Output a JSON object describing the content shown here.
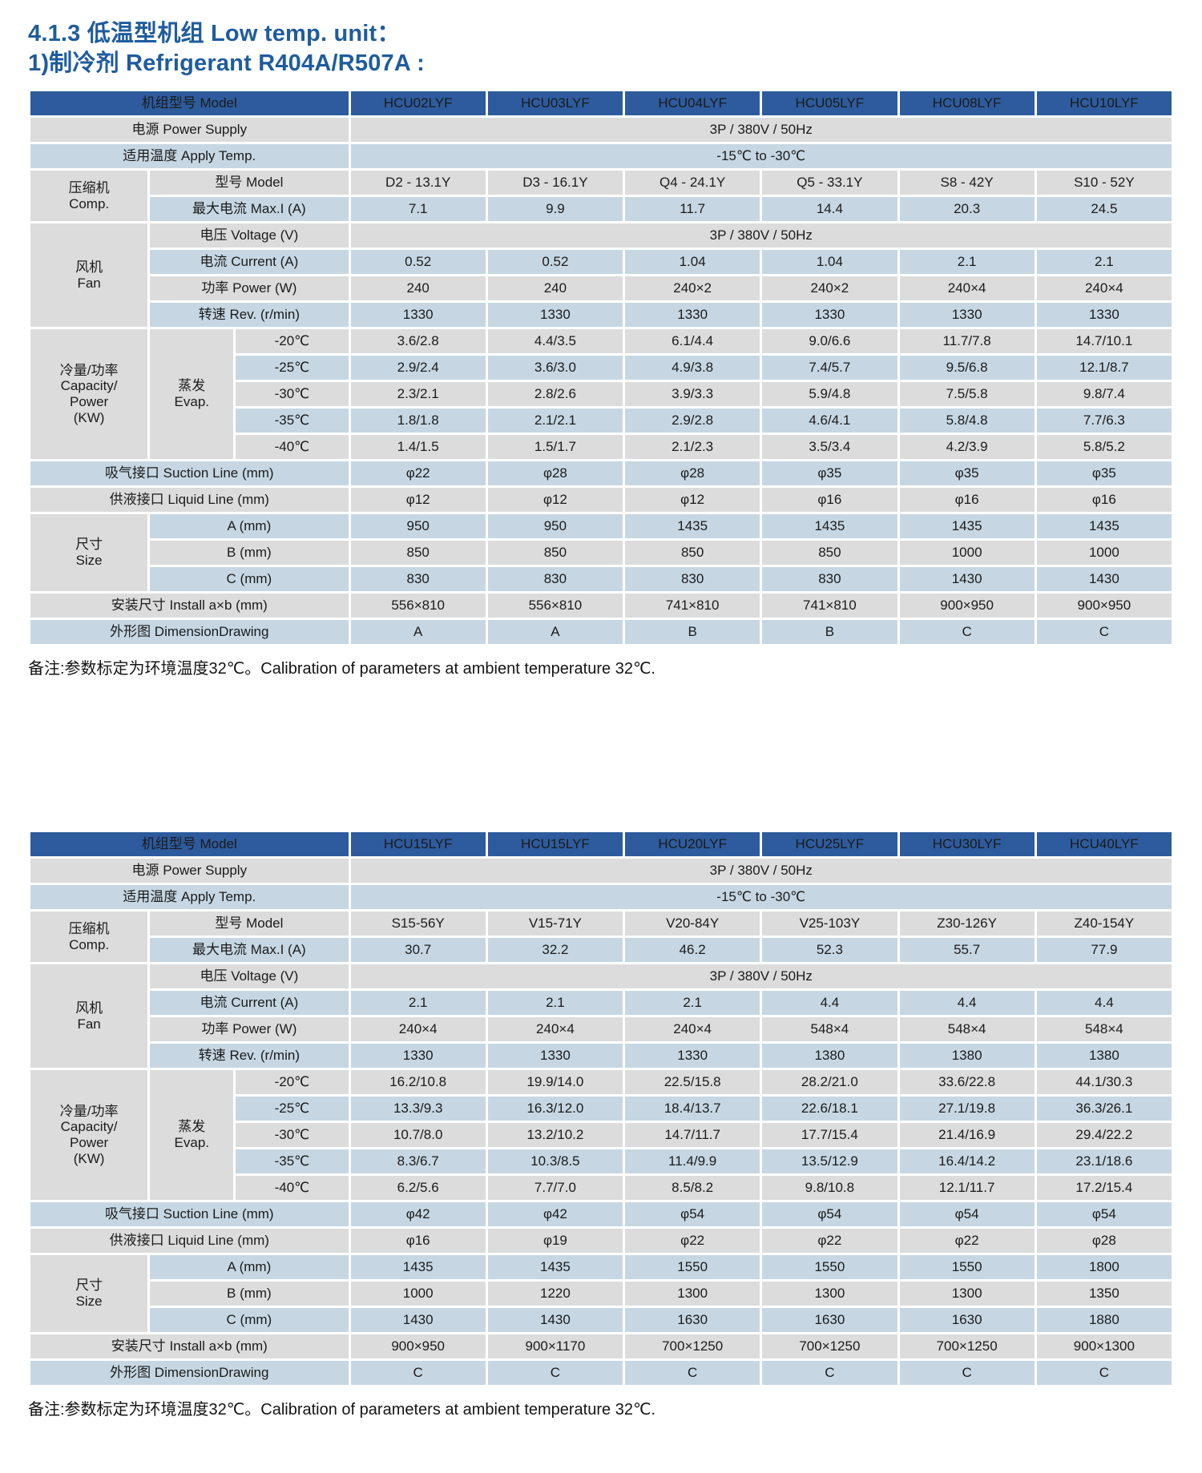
{
  "page": {
    "title_line1": "4.1.3 低温型机组 Low temp. unit：",
    "title_line2": "1)制冷剂 Refrigerant  R404A/R507A :",
    "footnote": "备注:参数标定为环境温度32℃。Calibration of parameters at ambient temperature 32℃."
  },
  "colors": {
    "header_bg": "#2d5b9d",
    "header_text": "#ffffff",
    "row_gray": "#dcdcdc",
    "row_blue": "#c6d7e3",
    "title_blue": "#1e5c9e"
  },
  "labels": {
    "model_header": "机组型号 Model",
    "power_supply": "电源 Power Supply",
    "apply_temp": "适用温度 Apply Temp.",
    "comp_group": [
      "压缩机",
      "Comp."
    ],
    "comp_model": "型号 Model",
    "comp_maxi": "最大电流 Max.I (A)",
    "fan_group": [
      "风机",
      "Fan"
    ],
    "fan_voltage": "电压 Voltage (V)",
    "fan_current": "电流 Current (A)",
    "fan_power": "功率 Power (W)",
    "fan_rev": "转速 Rev. (r/min)",
    "capacity_group": [
      "冷量/功率",
      "Capacity/",
      "Power",
      "(KW)"
    ],
    "evap": [
      "蒸发",
      "Evap."
    ],
    "temp_rows": [
      "-20℃",
      "-25℃",
      "-30℃",
      "-35℃",
      "-40℃"
    ],
    "suction": "吸气接口 Suction Line (mm)",
    "liquid": "供液接口 Liquid Line (mm)",
    "size_group": [
      "尺寸",
      "Size"
    ],
    "size_a": "A (mm)",
    "size_b": "B (mm)",
    "size_c": "C (mm)",
    "install": "安装尺寸 Install a×b (mm)",
    "drawing": "外形图 DimensionDrawing"
  },
  "tables": [
    {
      "models": [
        "HCU02LYF",
        "HCU03LYF",
        "HCU04LYF",
        "HCU05LYF",
        "HCU08LYF",
        "HCU10LYF"
      ],
      "power_supply": "3P / 380V / 50Hz",
      "apply_temp": "-15℃ to -30℃",
      "comp_model": [
        "D2 - 13.1Y",
        "D3 - 16.1Y",
        "Q4 - 24.1Y",
        "Q5 - 33.1Y",
        "S8 - 42Y",
        "S10 - 52Y"
      ],
      "comp_maxi": [
        "7.1",
        "9.9",
        "11.7",
        "14.4",
        "20.3",
        "24.5"
      ],
      "fan_voltage": "3P / 380V / 50Hz",
      "fan_current": [
        "0.52",
        "0.52",
        "1.04",
        "1.04",
        "2.1",
        "2.1"
      ],
      "fan_power": [
        "240",
        "240",
        "240×2",
        "240×2",
        "240×4",
        "240×4"
      ],
      "fan_rev": [
        "1330",
        "1330",
        "1330",
        "1330",
        "1330",
        "1330"
      ],
      "capacity": [
        [
          "3.6/2.8",
          "4.4/3.5",
          "6.1/4.4",
          "9.0/6.6",
          "11.7/7.8",
          "14.7/10.1"
        ],
        [
          "2.9/2.4",
          "3.6/3.0",
          "4.9/3.8",
          "7.4/5.7",
          "9.5/6.8",
          "12.1/8.7"
        ],
        [
          "2.3/2.1",
          "2.8/2.6",
          "3.9/3.3",
          "5.9/4.8",
          "7.5/5.8",
          "9.8/7.4"
        ],
        [
          "1.8/1.8",
          "2.1/2.1",
          "2.9/2.8",
          "4.6/4.1",
          "5.8/4.8",
          "7.7/6.3"
        ],
        [
          "1.4/1.5",
          "1.5/1.7",
          "2.1/2.3",
          "3.5/3.4",
          "4.2/3.9",
          "5.8/5.2"
        ]
      ],
      "suction": [
        "φ22",
        "φ28",
        "φ28",
        "φ35",
        "φ35",
        "φ35"
      ],
      "liquid": [
        "φ12",
        "φ12",
        "φ12",
        "φ16",
        "φ16",
        "φ16"
      ],
      "size_a": [
        "950",
        "950",
        "1435",
        "1435",
        "1435",
        "1435"
      ],
      "size_b": [
        "850",
        "850",
        "850",
        "850",
        "1000",
        "1000"
      ],
      "size_c": [
        "830",
        "830",
        "830",
        "830",
        "1430",
        "1430"
      ],
      "install": [
        "556×810",
        "556×810",
        "741×810",
        "741×810",
        "900×950",
        "900×950"
      ],
      "drawing": [
        "A",
        "A",
        "B",
        "B",
        "C",
        "C"
      ]
    },
    {
      "models": [
        "HCU15LYF",
        "HCU15LYF",
        "HCU20LYF",
        "HCU25LYF",
        "HCU30LYF",
        "HCU40LYF"
      ],
      "power_supply": "3P / 380V / 50Hz",
      "apply_temp": "-15℃ to -30℃",
      "comp_model": [
        "S15-56Y",
        "V15-71Y",
        "V20-84Y",
        "V25-103Y",
        "Z30-126Y",
        "Z40-154Y"
      ],
      "comp_maxi": [
        "30.7",
        "32.2",
        "46.2",
        "52.3",
        "55.7",
        "77.9"
      ],
      "fan_voltage": "3P / 380V / 50Hz",
      "fan_current": [
        "2.1",
        "2.1",
        "2.1",
        "4.4",
        "4.4",
        "4.4"
      ],
      "fan_power": [
        "240×4",
        "240×4",
        "240×4",
        "548×4",
        "548×4",
        "548×4"
      ],
      "fan_rev": [
        "1330",
        "1330",
        "1330",
        "1380",
        "1380",
        "1380"
      ],
      "capacity": [
        [
          "16.2/10.8",
          "19.9/14.0",
          "22.5/15.8",
          "28.2/21.0",
          "33.6/22.8",
          "44.1/30.3"
        ],
        [
          "13.3/9.3",
          "16.3/12.0",
          "18.4/13.7",
          "22.6/18.1",
          "27.1/19.8",
          "36.3/26.1"
        ],
        [
          "10.7/8.0",
          "13.2/10.2",
          "14.7/11.7",
          "17.7/15.4",
          "21.4/16.9",
          "29.4/22.2"
        ],
        [
          "8.3/6.7",
          "10.3/8.5",
          "11.4/9.9",
          "13.5/12.9",
          "16.4/14.2",
          "23.1/18.6"
        ],
        [
          "6.2/5.6",
          "7.7/7.0",
          "8.5/8.2",
          "9.8/10.8",
          "12.1/11.7",
          "17.2/15.4"
        ]
      ],
      "suction": [
        "φ42",
        "φ42",
        "φ54",
        "φ54",
        "φ54",
        "φ54"
      ],
      "liquid": [
        "φ16",
        "φ19",
        "φ22",
        "φ22",
        "φ22",
        "φ28"
      ],
      "size_a": [
        "1435",
        "1435",
        "1550",
        "1550",
        "1550",
        "1800"
      ],
      "size_b": [
        "1000",
        "1220",
        "1300",
        "1300",
        "1300",
        "1350"
      ],
      "size_c": [
        "1430",
        "1430",
        "1630",
        "1630",
        "1630",
        "1880"
      ],
      "install": [
        "900×950",
        "900×1170",
        "700×1250",
        "700×1250",
        "700×1250",
        "900×1300"
      ],
      "drawing": [
        "C",
        "C",
        "C",
        "C",
        "C",
        "C"
      ]
    }
  ]
}
